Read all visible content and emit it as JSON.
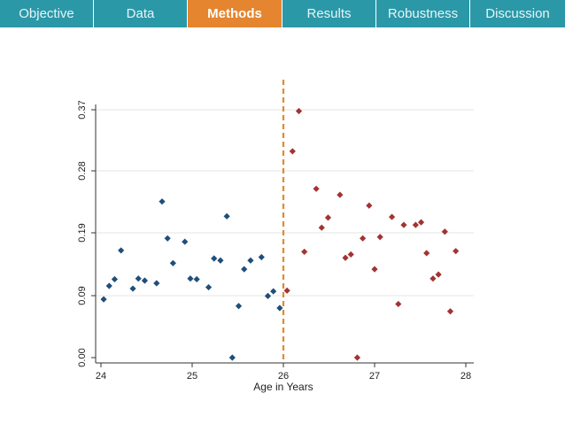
{
  "nav": {
    "tabs": [
      {
        "label": "Objective"
      },
      {
        "label": "Data"
      },
      {
        "label": "Methods"
      },
      {
        "label": "Results"
      },
      {
        "label": "Robustness"
      },
      {
        "label": "Discussion"
      }
    ],
    "active_index": 2
  },
  "colors": {
    "nav_bg": "#2b98a8",
    "active_tab": "#e5852f",
    "series_below": "#1f4e79",
    "series_above": "#a33333",
    "cutoff_line": "#e08a2c"
  },
  "chart_data": {
    "type": "scatter",
    "title": "",
    "xlabel": "Age in Years",
    "ylabel": "",
    "xlim": [
      24,
      28
    ],
    "ylim": [
      0,
      0.37
    ],
    "x_ticks": [
      "24",
      "25",
      "26",
      "27",
      "28"
    ],
    "y_ticks": [
      "0.00",
      "0.09",
      "0.19",
      "0.28",
      "0.37"
    ],
    "grid": true,
    "cutoff_x": 26,
    "series": [
      {
        "color": "#1f4e79",
        "x": [
          24.03,
          24.09,
          24.15,
          24.22,
          24.35,
          24.41,
          24.48,
          24.61,
          24.67,
          24.73,
          24.79,
          24.92,
          24.98,
          25.05,
          25.18,
          25.24,
          25.31,
          25.38,
          25.44,
          25.51,
          25.57,
          25.64,
          25.76,
          25.83,
          25.89,
          25.96
        ],
        "y": [
          0.087,
          0.107,
          0.117,
          0.16,
          0.103,
          0.118,
          0.115,
          0.111,
          0.233,
          0.178,
          0.141,
          0.173,
          0.118,
          0.117,
          0.105,
          0.148,
          0.145,
          0.211,
          0.0,
          0.077,
          0.132,
          0.145,
          0.15,
          0.092,
          0.099,
          0.074
        ]
      },
      {
        "color": "#a33333",
        "x": [
          26.04,
          26.1,
          26.17,
          26.23,
          26.36,
          26.42,
          26.49,
          26.62,
          26.68,
          26.74,
          26.81,
          26.87,
          26.94,
          27.0,
          27.06,
          27.19,
          27.26,
          27.32,
          27.45,
          27.51,
          27.57,
          27.64,
          27.7,
          27.77,
          27.83,
          27.89
        ],
        "y": [
          0.1,
          0.308,
          0.368,
          0.158,
          0.252,
          0.194,
          0.209,
          0.243,
          0.149,
          0.154,
          0.0,
          0.178,
          0.227,
          0.132,
          0.18,
          0.21,
          0.08,
          0.198,
          0.198,
          0.202,
          0.156,
          0.118,
          0.124,
          0.188,
          0.069,
          0.159
        ]
      }
    ]
  }
}
